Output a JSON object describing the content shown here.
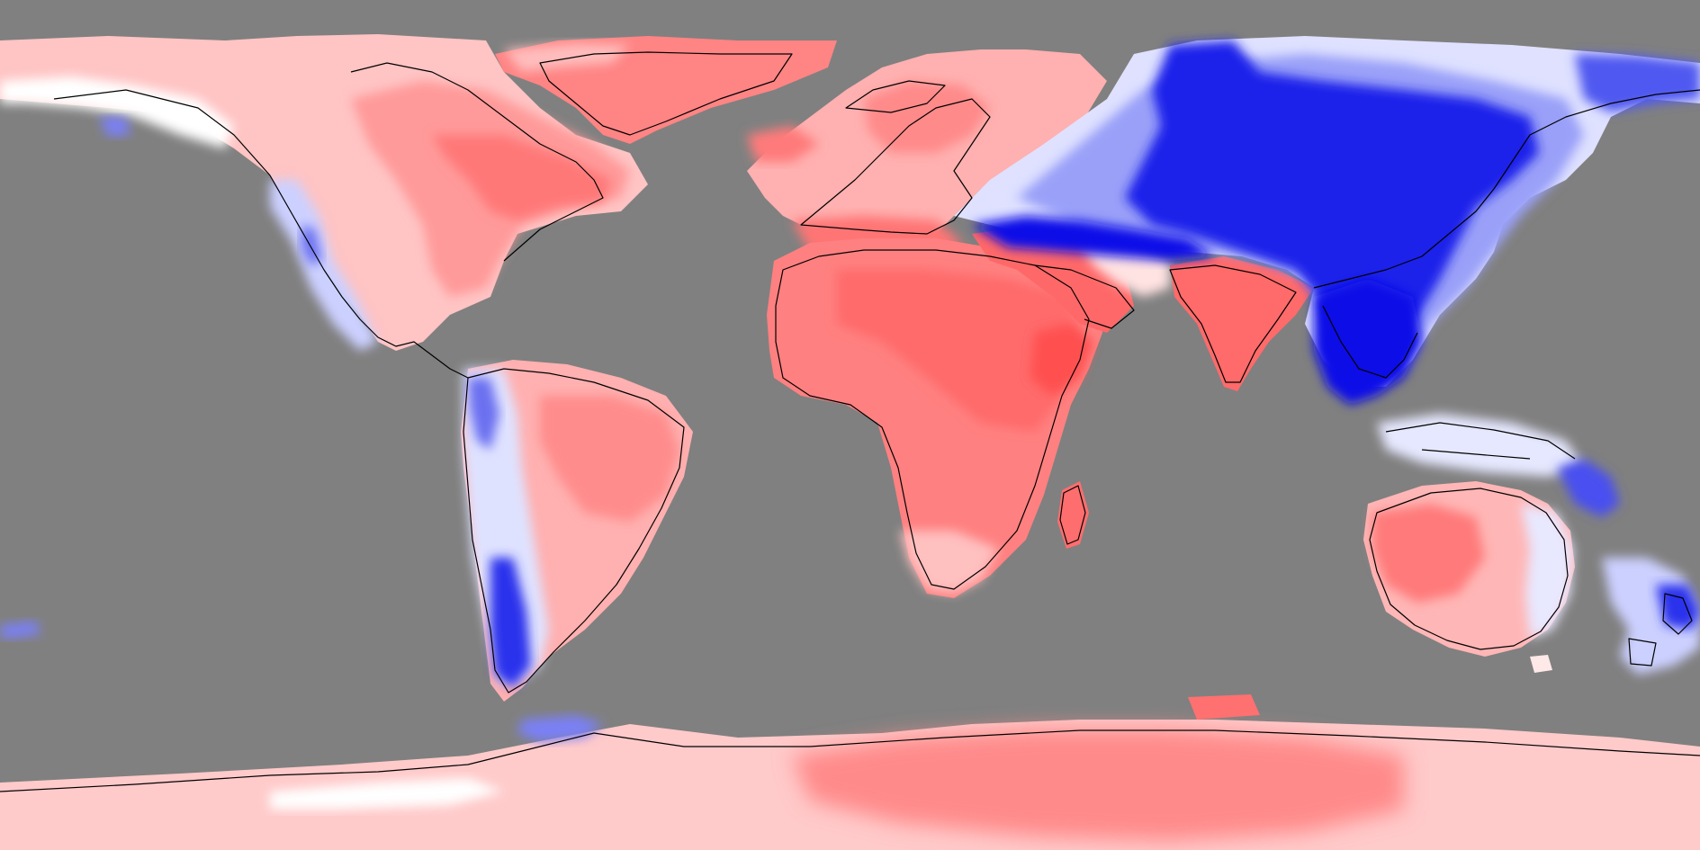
{
  "map": {
    "projection": "equirectangular",
    "colors": {
      "ocean": "#808080",
      "neutral": "#ffffff",
      "warm_1": "#ffd6d6",
      "warm_2": "#ffb3b3",
      "warm_3": "#ff8f8f",
      "warm_4": "#ff6b6b",
      "warm_5": "#ff4d4d",
      "cool_1": "#dde0ff",
      "cool_2": "#b3b8ff",
      "cool_3": "#7a80f5",
      "cool_4": "#3a3ff0",
      "cool_5": "#0a10e8",
      "coastline": "#000000"
    },
    "regions": [
      {
        "name": "greenland",
        "anomaly": "positive"
      },
      {
        "name": "north-america",
        "anomaly": "positive"
      },
      {
        "name": "central-america",
        "anomaly": "positive"
      },
      {
        "name": "south-america",
        "anomaly": "positive"
      },
      {
        "name": "europe",
        "anomaly": "positive"
      },
      {
        "name": "africa",
        "anomaly": "positive"
      },
      {
        "name": "middle-east",
        "anomaly": "positive"
      },
      {
        "name": "india",
        "anomaly": "positive"
      },
      {
        "name": "madagascar",
        "anomaly": "positive"
      },
      {
        "name": "australia",
        "anomaly": "positive"
      },
      {
        "name": "antarctica",
        "anomaly": "positive"
      },
      {
        "name": "siberia-east-asia",
        "anomaly": "negative"
      },
      {
        "name": "southeast-asia",
        "anomaly": "negative"
      },
      {
        "name": "andes-patagonia",
        "anomaly": "negative"
      },
      {
        "name": "new-zealand",
        "anomaly": "negative"
      },
      {
        "name": "antarctic-peninsula",
        "anomaly": "negative"
      },
      {
        "name": "rocky-mountains",
        "anomaly": "negative"
      }
    ]
  }
}
